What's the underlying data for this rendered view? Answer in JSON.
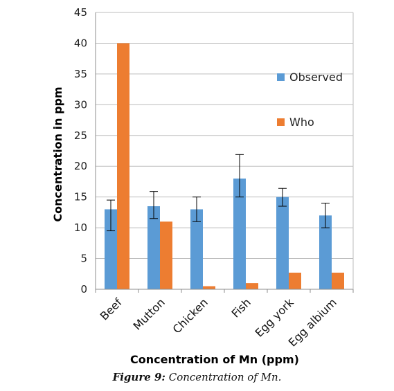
{
  "chart_data": {
    "type": "bar",
    "categories": [
      "Beef",
      "Mutton",
      "Chicken",
      "Fish",
      "Egg york",
      "Egg albium"
    ],
    "series": [
      {
        "name": "Observed",
        "color": "#5b9bd5",
        "values": [
          13,
          13.5,
          13,
          18,
          15,
          12
        ],
        "error": [
          [
            9.5,
            14.5
          ],
          [
            11.5,
            15.9
          ],
          [
            11,
            15
          ],
          [
            15,
            21.9
          ],
          [
            13.5,
            16.4
          ],
          [
            10,
            14
          ]
        ]
      },
      {
        "name": "Who",
        "color": "#ed7d31",
        "values": [
          40,
          11,
          0.5,
          1,
          2.7,
          2.7
        ]
      }
    ],
    "ylim": [
      0,
      45
    ],
    "yticks": [
      0,
      5,
      10,
      15,
      20,
      25,
      30,
      35,
      40,
      45
    ],
    "xlabel": "Concentration of Mn (ppm)",
    "ylabel": "Concentration in ppm",
    "grid": true,
    "legend": "right, inside plot"
  },
  "caption": {
    "label": "Figure 9:",
    "text": " Concentration of Mn."
  }
}
